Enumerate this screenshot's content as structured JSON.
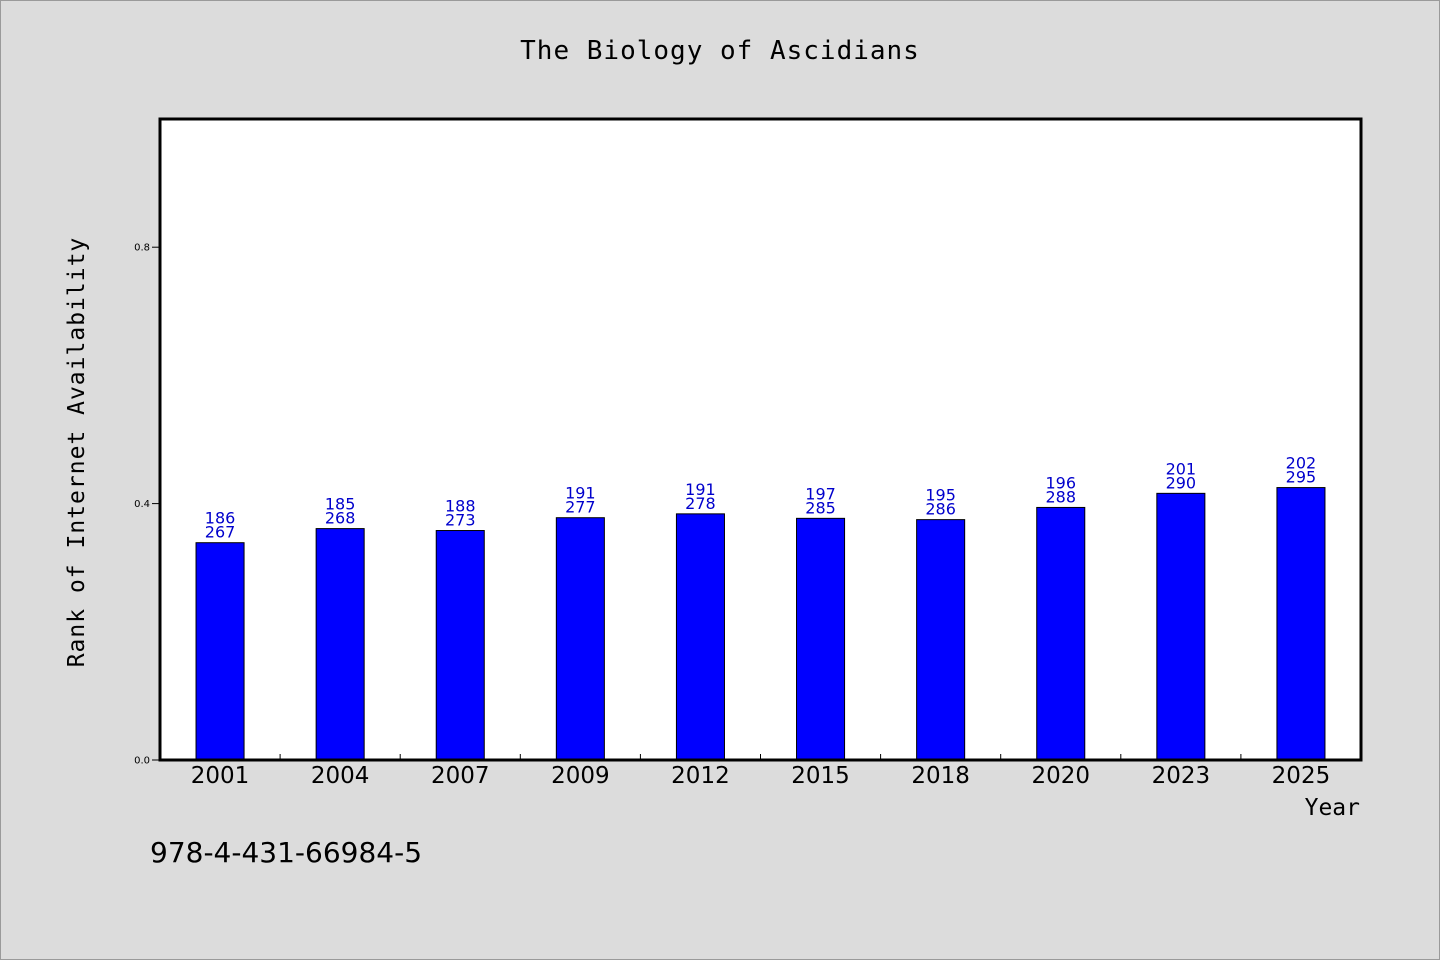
{
  "chart_data": {
    "type": "bar",
    "title": "The Biology of Ascidians",
    "xlabel": "Year",
    "ylabel": "Rank of Internet Availability",
    "ylim": [
      0.0,
      1.0
    ],
    "yticks": [
      0.0,
      0.4,
      0.8
    ],
    "ytick_labels": [
      "0.0",
      "0.4",
      "0.8"
    ],
    "grid": false,
    "bar_color": "#0000ff",
    "label_color": "#0000cc",
    "categories": [
      "2001",
      "2004",
      "2007",
      "2009",
      "2012",
      "2015",
      "2018",
      "2020",
      "2023",
      "2025"
    ],
    "values": [
      0.339,
      0.361,
      0.358,
      0.378,
      0.384,
      0.377,
      0.375,
      0.394,
      0.416,
      0.425
    ],
    "labels_top": [
      "186",
      "185",
      "188",
      "191",
      "191",
      "197",
      "195",
      "196",
      "201",
      "202"
    ],
    "labels_bottom": [
      "267",
      "268",
      "273",
      "277",
      "278",
      "285",
      "286",
      "288",
      "290",
      "295"
    ]
  },
  "footer": {
    "isbn": "978-4-431-66984-5"
  }
}
